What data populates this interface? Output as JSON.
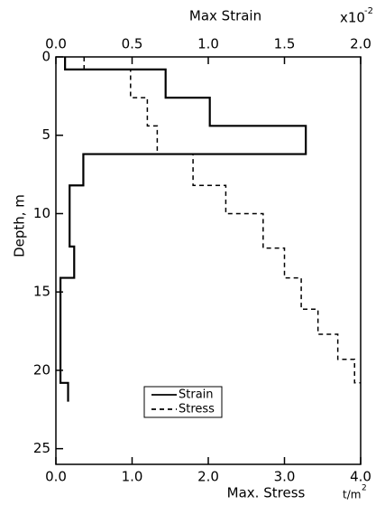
{
  "chart_data": {
    "type": "step",
    "x_label": "Max. Stress",
    "x_unit": "t/m",
    "x_unit_exp": "2",
    "x2_label": "Max Strain",
    "x2_multiplier": "x10",
    "x2_multiplier_exp": "-2",
    "y_label": "Depth, m",
    "xlim": [
      0,
      4
    ],
    "xticks": [
      {
        "value": 0,
        "label": "0.0"
      },
      {
        "value": 1,
        "label": "1.0"
      },
      {
        "value": 2,
        "label": "2.0"
      },
      {
        "value": 3,
        "label": "3.0"
      },
      {
        "value": 4,
        "label": "4.0"
      }
    ],
    "x2lim": [
      0,
      2
    ],
    "x2ticks": [
      {
        "value": 0,
        "label": "0.0"
      },
      0.5,
      {
        "value": 1,
        "label": "1.0"
      },
      1.5,
      {
        "value": 2,
        "label": "2.0"
      }
    ],
    "ylim": [
      0,
      26
    ],
    "yticks": [
      0,
      5,
      10,
      15,
      20,
      25
    ],
    "y_inverted": true,
    "series": [
      {
        "name": "Strain",
        "dash": "solid",
        "axis": "x2",
        "color": "#000000",
        "x": [
          0.06,
          0.06,
          0.72,
          0.72,
          1.01,
          1.01,
          1.64,
          1.64,
          0.18,
          0.18,
          0.09,
          0.09,
          0.12,
          0.12,
          0.03,
          0.03,
          0.08,
          0.08
        ],
        "y": [
          0,
          0.8,
          0.8,
          2.6,
          2.6,
          4.4,
          4.4,
          6.2,
          6.2,
          8.2,
          8.2,
          12.1,
          12.1,
          14.1,
          14.1,
          20.8,
          20.8,
          22.0
        ]
      },
      {
        "name": "Stress",
        "dash": "dashed",
        "axis": "x",
        "color": "#000000",
        "x": [
          0.37,
          0.37,
          0.98,
          0.98,
          1.2,
          1.2,
          1.33,
          1.33,
          1.8,
          1.8,
          2.23,
          2.23,
          2.72,
          2.72,
          3.0,
          3.0,
          3.22,
          3.22,
          3.44,
          3.44,
          3.7,
          3.7,
          3.92,
          3.92,
          4.0
        ],
        "y": [
          0,
          0.8,
          0.8,
          2.6,
          2.6,
          4.4,
          4.4,
          6.2,
          6.2,
          8.2,
          8.2,
          10.0,
          10.0,
          12.2,
          12.2,
          14.1,
          14.1,
          16.1,
          16.1,
          17.7,
          17.7,
          19.3,
          19.3,
          20.8,
          20.8
        ]
      }
    ]
  }
}
